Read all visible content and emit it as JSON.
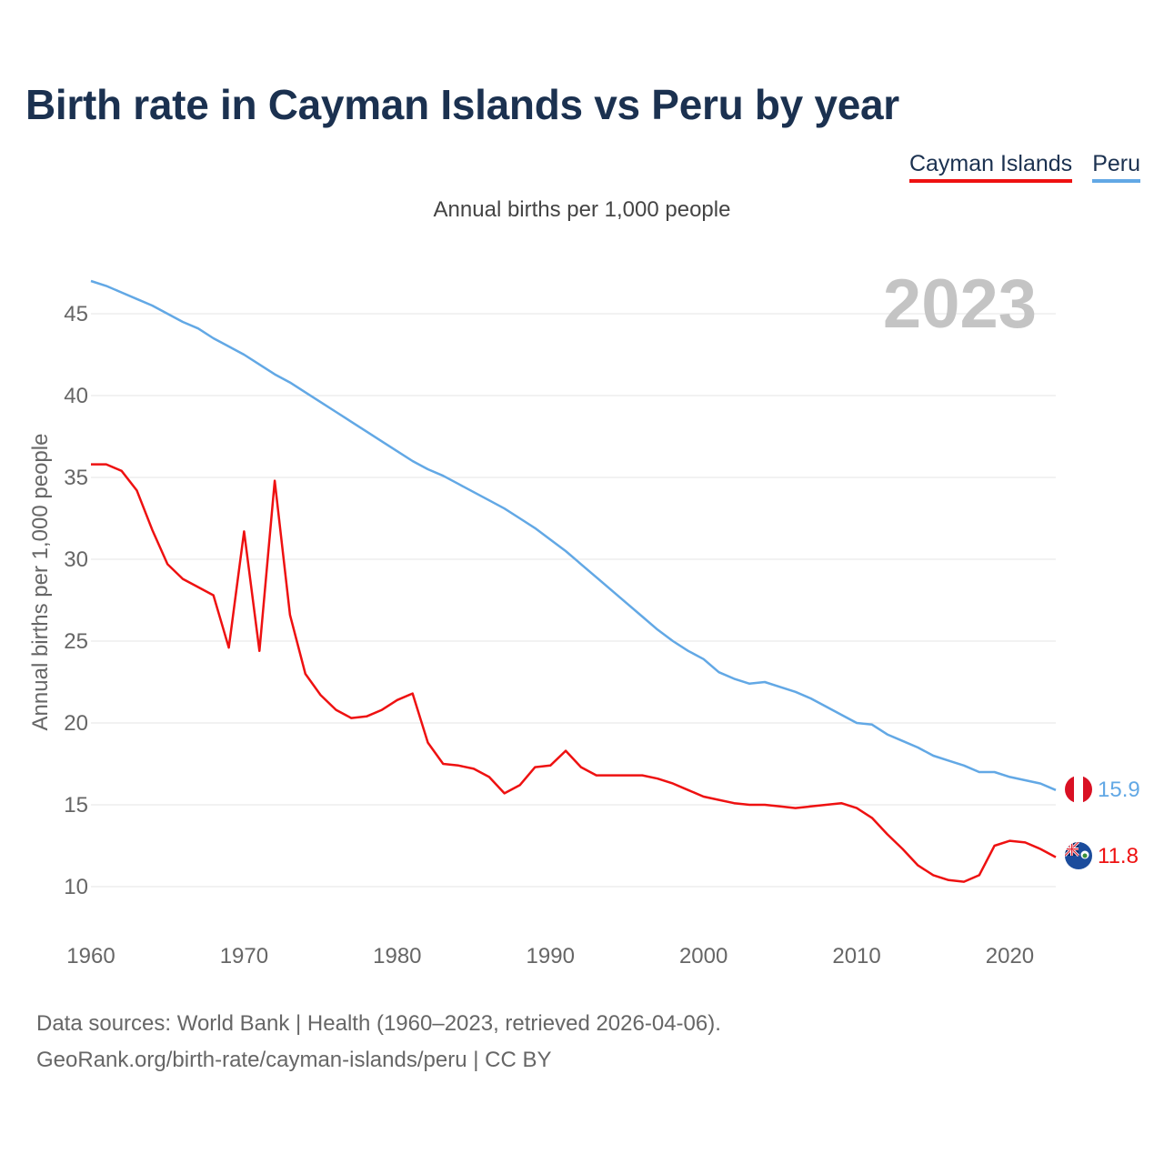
{
  "title": "Birth rate in Cayman Islands vs Peru by year",
  "subtitle": "Annual births per 1,000 people",
  "legend": [
    {
      "label": "Cayman Islands",
      "color": "#ee1111"
    },
    {
      "label": "Peru",
      "color": "#62a8e5"
    }
  ],
  "year_label": "2023",
  "footer": {
    "line1": "Data sources: World Bank | Health (1960–2023, retrieved 2026-04-06).",
    "line2": "GeoRank.org/birth-rate/cayman-islands/peru | CC BY"
  },
  "end_labels": [
    {
      "series": "Peru",
      "text": "15.9",
      "flag": "peru-flag-icon"
    },
    {
      "series": "Cayman Islands",
      "text": "11.8",
      "flag": "cayman-flag-icon"
    }
  ],
  "chart_data": {
    "type": "line",
    "title": "Birth rate in Cayman Islands vs Peru by year",
    "xlabel": "",
    "ylabel": "Annual births per 1,000 people",
    "xlim": [
      1960,
      2023
    ],
    "ylim": [
      7,
      48
    ],
    "x_ticks": [
      1960,
      1970,
      1980,
      1990,
      2000,
      2010,
      2020
    ],
    "y_ticks": [
      10,
      15,
      20,
      25,
      30,
      35,
      40,
      45
    ],
    "grid": true,
    "legend_position": "top-right",
    "x": [
      1960,
      1961,
      1962,
      1963,
      1964,
      1965,
      1966,
      1967,
      1968,
      1969,
      1970,
      1971,
      1972,
      1973,
      1974,
      1975,
      1976,
      1977,
      1978,
      1979,
      1980,
      1981,
      1982,
      1983,
      1984,
      1985,
      1986,
      1987,
      1988,
      1989,
      1990,
      1991,
      1992,
      1993,
      1994,
      1995,
      1996,
      1997,
      1998,
      1999,
      2000,
      2001,
      2002,
      2003,
      2004,
      2005,
      2006,
      2007,
      2008,
      2009,
      2010,
      2011,
      2012,
      2013,
      2014,
      2015,
      2016,
      2017,
      2018,
      2019,
      2020,
      2021,
      2022,
      2023
    ],
    "series": [
      {
        "name": "Peru",
        "color": "#62a8e5",
        "values": [
          47.0,
          46.7,
          46.3,
          45.9,
          45.5,
          45.0,
          44.5,
          44.1,
          43.5,
          43.0,
          42.5,
          41.9,
          41.3,
          40.8,
          40.2,
          39.6,
          39.0,
          38.4,
          37.8,
          37.2,
          36.6,
          36.0,
          35.5,
          35.1,
          34.6,
          34.1,
          33.6,
          33.1,
          32.5,
          31.9,
          31.2,
          30.5,
          29.7,
          28.9,
          28.1,
          27.3,
          26.5,
          25.7,
          25.0,
          24.4,
          23.9,
          23.1,
          22.7,
          22.4,
          22.5,
          22.2,
          21.9,
          21.5,
          21.0,
          20.5,
          20.0,
          19.9,
          19.3,
          18.9,
          18.5,
          18.0,
          17.7,
          17.4,
          17.0,
          17.0,
          16.7,
          16.5,
          16.3,
          15.9
        ]
      },
      {
        "name": "Cayman Islands",
        "color": "#ee1111",
        "values": [
          35.8,
          35.8,
          35.4,
          34.2,
          31.8,
          29.7,
          28.8,
          28.3,
          27.8,
          24.6,
          31.7,
          24.4,
          34.8,
          26.6,
          23.0,
          21.7,
          20.8,
          20.3,
          20.4,
          20.8,
          21.4,
          21.8,
          18.8,
          17.5,
          17.4,
          17.2,
          16.7,
          15.7,
          16.2,
          17.3,
          17.4,
          18.3,
          17.3,
          16.8,
          16.8,
          16.8,
          16.8,
          16.6,
          16.3,
          15.9,
          15.5,
          15.3,
          15.1,
          15.0,
          15.0,
          14.9,
          14.8,
          14.9,
          15.0,
          15.1,
          14.8,
          14.2,
          13.2,
          12.3,
          11.3,
          10.7,
          10.4,
          10.3,
          10.7,
          12.5,
          12.8,
          12.7,
          12.3,
          11.8
        ]
      }
    ]
  }
}
